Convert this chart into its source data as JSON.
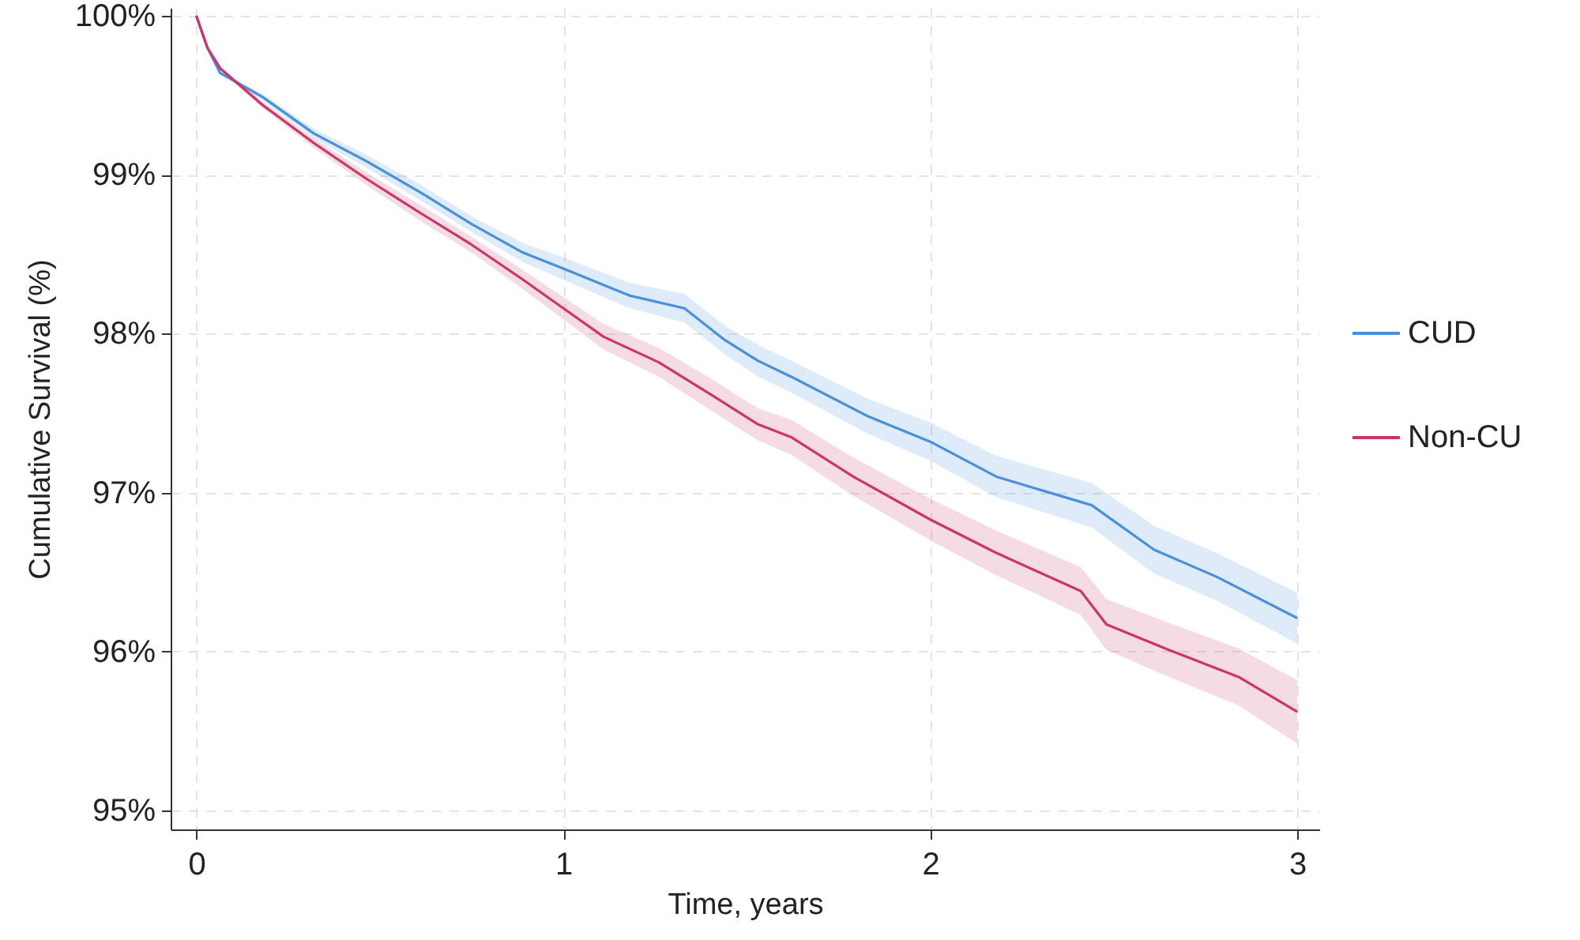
{
  "chart_data": {
    "type": "line",
    "xlabel": "Time, years",
    "ylabel": "Cumulative Survival (%)",
    "xlim": [
      -0.07,
      3.06
    ],
    "xticks": [
      0,
      1,
      2,
      3
    ],
    "ylim": [
      94.88,
      100.05
    ],
    "yticks": [
      {
        "value": 95,
        "label": "95%"
      },
      {
        "value": 96,
        "label": "96%"
      },
      {
        "value": 97,
        "label": "97%"
      },
      {
        "value": 98,
        "label": "98%"
      },
      {
        "value": 99,
        "label": "99%"
      },
      {
        "value": 100,
        "label": "100%"
      }
    ],
    "grid": true,
    "legend": "right",
    "line_style": "solid",
    "marker": "none",
    "series": [
      {
        "name": "CUD",
        "color": "#4a90d9",
        "x": [
          0,
          0.03,
          0.065,
          0.18,
          0.32,
          0.46,
          0.61,
          0.75,
          0.89,
          1.0,
          1.18,
          1.33,
          1.44,
          1.53,
          1.62,
          1.83,
          2.0,
          2.18,
          2.44,
          2.61,
          2.78,
          3.0
        ],
        "values": [
          100,
          99.8,
          99.64,
          99.49,
          99.26,
          99.09,
          98.89,
          98.69,
          98.51,
          98.41,
          98.24,
          98.16,
          97.96,
          97.83,
          97.73,
          97.48,
          97.32,
          97.1,
          96.92,
          96.64,
          96.47,
          96.21
        ],
        "lower": [
          100,
          99.8,
          99.63,
          99.47,
          99.23,
          99.05,
          98.84,
          98.64,
          98.45,
          98.34,
          98.16,
          98.07,
          97.87,
          97.73,
          97.63,
          97.37,
          97.2,
          96.97,
          96.78,
          96.49,
          96.32,
          96.05
        ],
        "upper": [
          100,
          99.8,
          99.65,
          99.51,
          99.29,
          99.13,
          98.94,
          98.74,
          98.57,
          98.48,
          98.32,
          98.25,
          98.05,
          97.93,
          97.83,
          97.59,
          97.44,
          97.23,
          97.06,
          96.79,
          96.62,
          96.37
        ]
      },
      {
        "name": "Non-CU",
        "color": "#c8366a",
        "x": [
          0,
          0.03,
          0.065,
          0.18,
          0.32,
          0.46,
          0.61,
          0.75,
          0.89,
          1.0,
          1.11,
          1.26,
          1.4,
          1.53,
          1.62,
          1.79,
          2.0,
          2.18,
          2.41,
          2.48,
          2.65,
          2.84,
          3.0
        ],
        "values": [
          100,
          99.8,
          99.67,
          99.44,
          99.2,
          98.98,
          98.76,
          98.56,
          98.34,
          98.16,
          97.98,
          97.82,
          97.62,
          97.43,
          97.35,
          97.1,
          96.83,
          96.62,
          96.38,
          96.17,
          96.01,
          95.84,
          95.62
        ],
        "lower": [
          100,
          99.8,
          99.66,
          99.42,
          99.17,
          98.94,
          98.71,
          98.51,
          98.28,
          98.09,
          97.9,
          97.73,
          97.52,
          97.33,
          97.24,
          96.98,
          96.7,
          96.48,
          96.23,
          96.01,
          95.84,
          95.66,
          95.42
        ],
        "upper": [
          100,
          99.8,
          99.68,
          99.46,
          99.23,
          99.02,
          98.81,
          98.61,
          98.4,
          98.23,
          98.06,
          97.91,
          97.72,
          97.53,
          97.46,
          97.22,
          96.96,
          96.76,
          96.53,
          96.33,
          96.18,
          96.02,
          95.82
        ]
      }
    ]
  }
}
